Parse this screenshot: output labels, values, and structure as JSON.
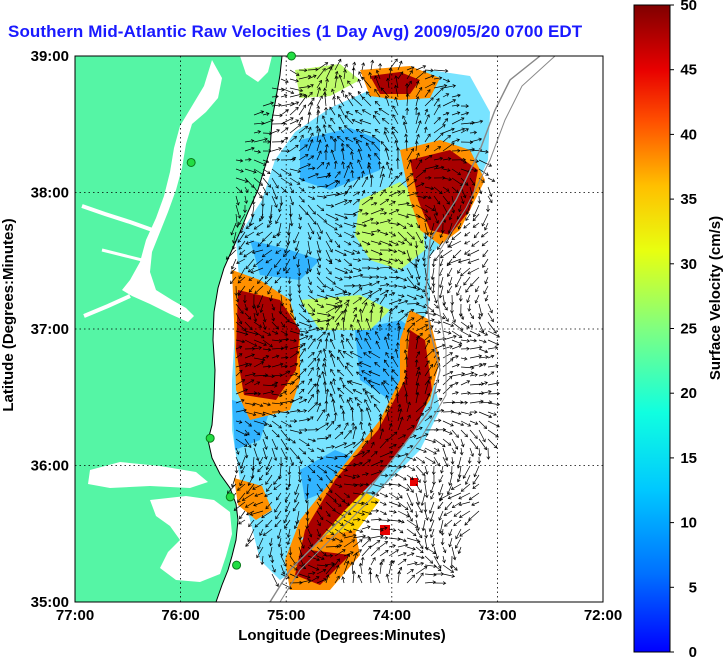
{
  "title": "Southern Mid-Atlantic Raw Velocities (1 Day Avg) 2009/05/20 0700 EDT",
  "x_axis": {
    "label": "Longitude (Degrees:Minutes)",
    "ticks": [
      "77:00",
      "76:00",
      "75:00",
      "74:00",
      "73:00",
      "72:00"
    ]
  },
  "y_axis": {
    "label": "Latitude (Degrees:Minutes)",
    "ticks": [
      "39:00",
      "38:00",
      "37:00",
      "36:00",
      "35:00"
    ]
  },
  "colorbar": {
    "label": "Surface Velocity (cm/s)",
    "ticks": [
      "50",
      "45",
      "40",
      "35",
      "30",
      "25",
      "20",
      "15",
      "10",
      "5",
      "0"
    ],
    "min": 0,
    "max": 50,
    "colormap": "jet"
  },
  "map": {
    "lon_range": [
      -77,
      -72
    ],
    "lat_range": [
      35,
      39
    ],
    "grid": true,
    "land_color": "#55f5a5",
    "stations": [
      {
        "lon": -74.95,
        "lat": 39.0
      },
      {
        "lon": -75.9,
        "lat": 38.22
      },
      {
        "lon": -75.72,
        "lat": 36.2
      },
      {
        "lon": -75.53,
        "lat": 35.77
      },
      {
        "lon": -75.47,
        "lat": 35.27
      }
    ]
  }
}
